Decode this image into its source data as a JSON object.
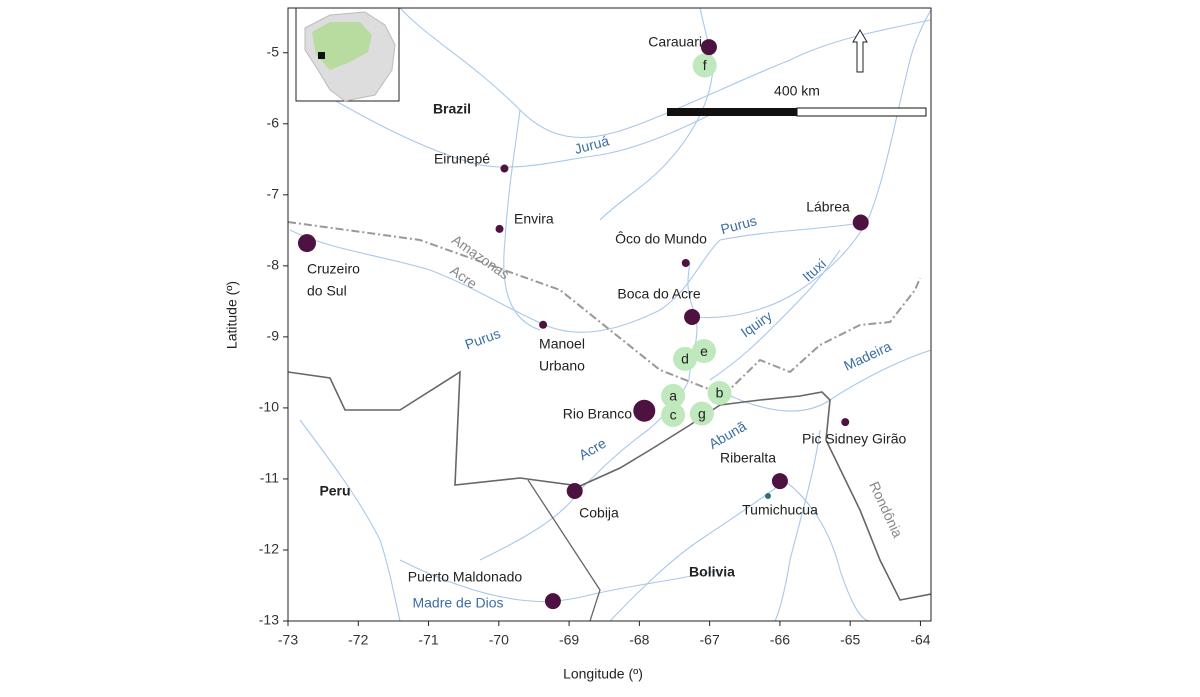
{
  "map": {
    "x_label": "Longitude (º)",
    "y_label": "Latitude (º)",
    "xlim": [
      -73,
      -63.85
    ],
    "ylim": [
      -13,
      -4.37
    ],
    "xticks": [
      -73,
      -72,
      -71,
      -70,
      -69,
      -68,
      -67,
      -66,
      -65,
      -64
    ],
    "yticks": [
      -5,
      -6,
      -7,
      -8,
      -9,
      -10,
      -11,
      -12,
      -13
    ],
    "scale_bar": "400 km",
    "countries": [
      "Brazil",
      "Peru",
      "Bolivia"
    ],
    "regions": [
      "Amazonas",
      "Acre",
      "Rondônia"
    ],
    "rivers": [
      "Juruá",
      "Purus",
      "Ituxi",
      "Iquiry",
      "Madeira",
      "Abunã",
      "Acre",
      "Purus",
      "Madre de Dios"
    ],
    "places": [
      {
        "lines": [
          "Carauari"
        ],
        "lon": -67.01,
        "lat": -4.92
      },
      {
        "lines": [
          "Eirunepé"
        ],
        "lon": -69.92,
        "lat": -6.63
      },
      {
        "lines": [
          "Envira"
        ],
        "lon": -69.99,
        "lat": -7.48
      },
      {
        "lines": [
          "Cruzeiro",
          "do Sul"
        ],
        "lon": -72.73,
        "lat": -7.68
      },
      {
        "lines": [
          "Lábrea"
        ],
        "lon": -64.85,
        "lat": -7.39
      },
      {
        "lines": [
          "Ôco do Mundo"
        ],
        "lon": -67.34,
        "lat": -7.96
      },
      {
        "lines": [
          "Boca do Acre"
        ],
        "lon": -67.25,
        "lat": -8.72
      },
      {
        "lines": [
          "Manoel",
          "Urbano"
        ],
        "lon": -69.37,
        "lat": -8.83
      },
      {
        "lines": [
          "Rio Branco"
        ],
        "lon": -67.93,
        "lat": -10.04
      },
      {
        "lines": [
          "Pic Sidney Girão"
        ],
        "lon": -65.07,
        "lat": -10.2
      },
      {
        "lines": [
          "Riberalta"
        ],
        "lon": -66.0,
        "lat": -11.03
      },
      {
        "lines": [
          "Tumichucua"
        ],
        "lon": -66.17,
        "lat": -11.24
      },
      {
        "lines": [
          "Cobija"
        ],
        "lon": -68.92,
        "lat": -11.17
      },
      {
        "lines": [
          "Puerto  Maldonado"
        ],
        "lon": -69.23,
        "lat": -12.72
      }
    ],
    "sites": [
      {
        "label": "f",
        "lon": -67.07,
        "lat": -5.18
      },
      {
        "label": "d",
        "lon": -67.35,
        "lat": -9.31
      },
      {
        "label": "e",
        "lon": -67.08,
        "lat": -9.2
      },
      {
        "label": "a",
        "lon": -67.52,
        "lat": -9.83
      },
      {
        "label": "b",
        "lon": -66.86,
        "lat": -9.79
      },
      {
        "label": "c",
        "lon": -67.52,
        "lat": -10.1
      },
      {
        "label": "g",
        "lon": -67.11,
        "lat": -10.08
      }
    ]
  }
}
